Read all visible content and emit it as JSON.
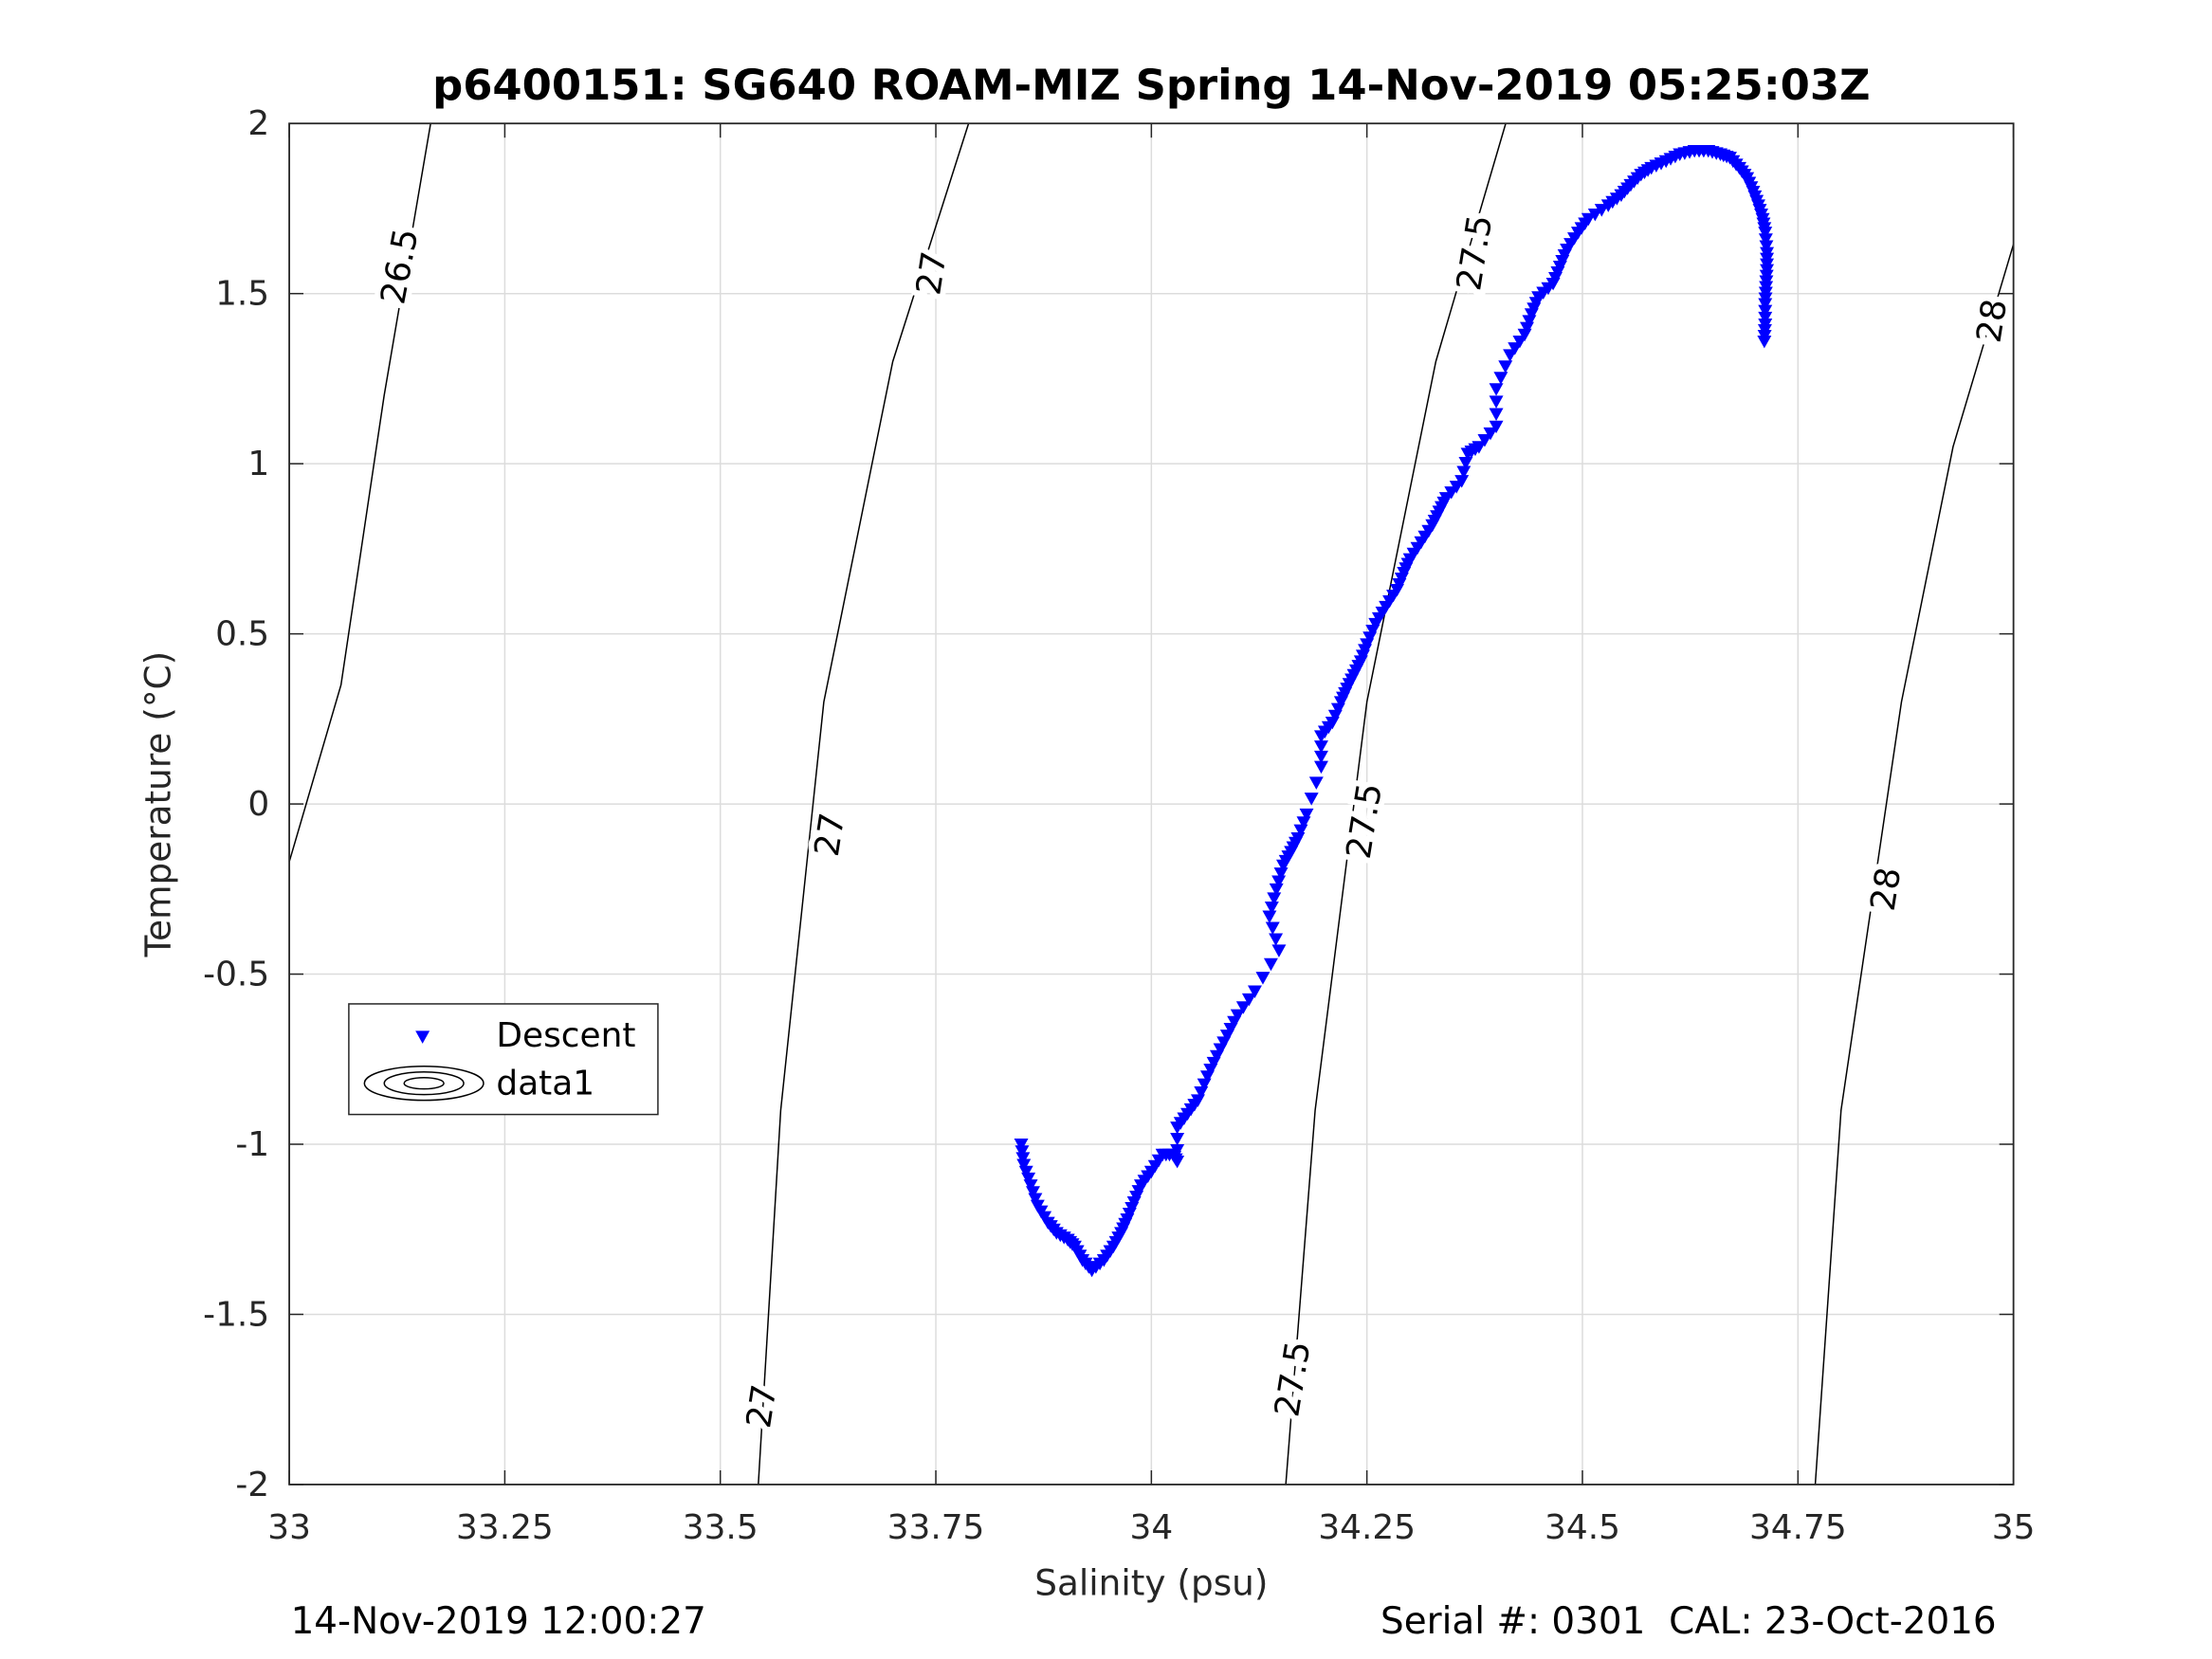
{
  "chart_data": {
    "type": "scatter",
    "title": "p6400151: SG640 ROAM-MIZ Spring 14-Nov-2019 05:25:03Z",
    "xlabel": "Salinity (psu)",
    "ylabel": "Temperature (°C)",
    "xlim": [
      33,
      35
    ],
    "ylim": [
      -2,
      2
    ],
    "grid": true,
    "xticks": [
      33,
      33.25,
      33.5,
      33.75,
      34,
      34.25,
      34.5,
      34.75,
      35
    ],
    "xtick_labels": [
      "33",
      "33.25",
      "33.5",
      "33.75",
      "34",
      "34.25",
      "34.5",
      "34.75",
      "35"
    ],
    "yticks": [
      -2,
      -1.5,
      -1,
      -0.5,
      0,
      0.5,
      1,
      1.5,
      2
    ],
    "ytick_labels": [
      "-2",
      "-1.5",
      "-1",
      "-0.5",
      "0",
      "0.5",
      "1",
      "1.5",
      "2"
    ],
    "legend": {
      "placement": "lower-left",
      "entries": [
        "Descent",
        "data1"
      ]
    },
    "series": [
      {
        "name": "Descent",
        "marker": "down-triangle",
        "color": "#0000ff",
        "points": [
          [
            33.849,
            -1.0
          ],
          [
            33.852,
            -1.06
          ],
          [
            33.86,
            -1.12
          ],
          [
            33.868,
            -1.18
          ],
          [
            33.88,
            -1.23
          ],
          [
            33.89,
            -1.26
          ],
          [
            33.903,
            -1.28
          ],
          [
            33.911,
            -1.3
          ],
          [
            33.92,
            -1.34
          ],
          [
            33.931,
            -1.37
          ],
          [
            33.945,
            -1.34
          ],
          [
            33.956,
            -1.3
          ],
          [
            33.965,
            -1.26
          ],
          [
            33.972,
            -1.22
          ],
          [
            33.98,
            -1.17
          ],
          [
            33.988,
            -1.12
          ],
          [
            34.0,
            -1.08
          ],
          [
            34.013,
            -1.03
          ],
          [
            34.025,
            -1.03
          ],
          [
            34.03,
            -1.05
          ],
          [
            34.03,
            -0.95
          ],
          [
            34.042,
            -0.91
          ],
          [
            34.054,
            -0.87
          ],
          [
            34.065,
            -0.8
          ],
          [
            34.076,
            -0.74
          ],
          [
            34.088,
            -0.68
          ],
          [
            34.1,
            -0.62
          ],
          [
            34.12,
            -0.55
          ],
          [
            34.148,
            -0.43
          ],
          [
            34.137,
            -0.33
          ],
          [
            34.145,
            -0.25
          ],
          [
            34.153,
            -0.18
          ],
          [
            34.162,
            -0.14
          ],
          [
            34.17,
            -0.1
          ],
          [
            34.18,
            -0.03
          ],
          [
            34.197,
            0.11
          ],
          [
            34.197,
            0.2
          ],
          [
            34.21,
            0.24
          ],
          [
            34.22,
            0.3
          ],
          [
            34.227,
            0.34
          ],
          [
            34.235,
            0.38
          ],
          [
            34.243,
            0.42
          ],
          [
            34.25,
            0.47
          ],
          [
            34.26,
            0.53
          ],
          [
            34.272,
            0.58
          ],
          [
            34.285,
            0.63
          ],
          [
            34.293,
            0.68
          ],
          [
            34.3,
            0.72
          ],
          [
            34.313,
            0.77
          ],
          [
            34.326,
            0.82
          ],
          [
            34.334,
            0.86
          ],
          [
            34.342,
            0.9
          ],
          [
            34.36,
            0.95
          ],
          [
            34.367,
            1.03
          ],
          [
            34.38,
            1.05
          ],
          [
            34.4,
            1.11
          ],
          [
            34.4,
            1.22
          ],
          [
            34.416,
            1.32
          ],
          [
            34.433,
            1.38
          ],
          [
            34.441,
            1.44
          ],
          [
            34.449,
            1.49
          ],
          [
            34.466,
            1.53
          ],
          [
            34.474,
            1.58
          ],
          [
            34.482,
            1.63
          ],
          [
            34.495,
            1.68
          ],
          [
            34.507,
            1.72
          ],
          [
            34.53,
            1.76
          ],
          [
            34.545,
            1.79
          ],
          [
            34.556,
            1.82
          ],
          [
            34.568,
            1.85
          ],
          [
            34.58,
            1.87
          ],
          [
            34.597,
            1.89
          ],
          [
            34.613,
            1.91
          ],
          [
            34.63,
            1.92
          ],
          [
            34.646,
            1.92
          ],
          [
            34.66,
            1.91
          ],
          [
            34.671,
            1.9
          ],
          [
            34.682,
            1.87
          ],
          [
            34.691,
            1.84
          ],
          [
            34.698,
            1.8
          ],
          [
            34.704,
            1.76
          ],
          [
            34.709,
            1.72
          ],
          [
            34.712,
            1.68
          ],
          [
            34.714,
            1.62
          ],
          [
            34.714,
            1.57
          ],
          [
            34.713,
            1.52
          ],
          [
            34.712,
            1.47
          ],
          [
            34.712,
            1.41
          ],
          [
            34.711,
            1.36
          ]
        ]
      }
    ],
    "contours": [
      {
        "level": "26.5",
        "path": [
          [
            33.0,
            -0.17
          ],
          [
            33.06,
            0.35
          ],
          [
            33.11,
            1.2
          ],
          [
            33.164,
            2.0
          ]
        ],
        "labels": [
          [
            33.128,
            1.58
          ]
        ]
      },
      {
        "level": "27",
        "path": [
          [
            33.544,
            -2.0
          ],
          [
            33.57,
            -0.9
          ],
          [
            33.62,
            0.3
          ],
          [
            33.7,
            1.3
          ],
          [
            33.788,
            2.0
          ]
        ],
        "labels": [
          [
            33.548,
            -1.77
          ],
          [
            33.627,
            -0.09
          ],
          [
            33.745,
            1.56
          ]
        ]
      },
      {
        "level": "27.5",
        "path": [
          [
            34.156,
            -2.0
          ],
          [
            34.19,
            -0.9
          ],
          [
            34.25,
            0.3
          ],
          [
            34.33,
            1.3
          ],
          [
            34.411,
            2.0
          ]
        ],
        "labels": [
          [
            34.164,
            -1.69
          ],
          [
            34.247,
            -0.05
          ],
          [
            34.375,
            1.62
          ]
        ]
      },
      {
        "level": "28",
        "path": [
          [
            34.77,
            -2.0
          ],
          [
            34.8,
            -0.9
          ],
          [
            34.87,
            0.3
          ],
          [
            34.93,
            1.05
          ],
          [
            35.0,
            1.645
          ]
        ],
        "labels": [
          [
            34.852,
            -0.25
          ],
          [
            34.975,
            1.42
          ]
        ]
      }
    ]
  },
  "footer": {
    "left": "14-Nov-2019 12:00:27",
    "right": "Serial #: 0301  CAL: 23-Oct-2016"
  }
}
